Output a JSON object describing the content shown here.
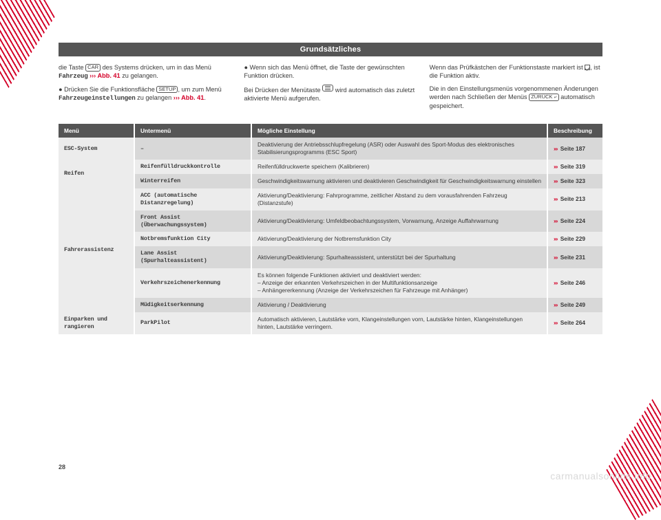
{
  "page": {
    "title": "Grundsätzliches",
    "page_number": "28",
    "watermark": "carmanualsonline.info"
  },
  "columns": {
    "col1_p1a": "die Taste ",
    "col1_key1": "CAR",
    "col1_p1b": " des Systems drücken, um in das Menü ",
    "col1_p1_mono": "Fahrzeug",
    "col1_p1_ref": " ››› Abb. 41",
    "col1_p1c": " zu gelangen.",
    "col1_p2a": "Drücken Sie die Funktionsfläche ",
    "col1_key2": "SETUP",
    "col1_p2b": ", um zum Menü ",
    "col1_p2_mono": "Fahrzeugeinstellungen",
    "col1_p2c": " zu gelangen ",
    "col1_p2_ref": "››› Abb. 41",
    "col1_p2d": ".",
    "col2_p1": "Wenn sich das Menü öffnet, die Taste der gewünschten Funktion drücken.",
    "col2_p2a": "Bei Drücken der Menütaste ",
    "col2_p2b": " wird automatisch das zuletzt aktivierte Menü aufgerufen.",
    "col3_p1a": "Wenn das Prüfkästchen der Funktionstaste markiert ist ",
    "col3_p1b": ", ist die Funktion aktiv.",
    "col3_p2a": "Die in den Einstellungsmenüs vorgenommenen Änderungen werden nach Schließen der Menüs ",
    "col3_key": "ZURÜCK ⤶",
    "col3_p2b": " automatisch gespeichert."
  },
  "table": {
    "headers": {
      "c1": "Menü",
      "c2": "Untermenü",
      "c3": "Mögliche Einstellung",
      "c4": "Beschreibung"
    },
    "rows": [
      {
        "shade": "dark",
        "menu": "ESC-System",
        "menu_rowspan": 1,
        "sub": "–",
        "desc": "Deaktivierung der Antriebsschlupfregelung (ASR) oder Auswahl des Sport-Modus des elektronisches Stabilisierungsprogramms (ESC Sport)",
        "ref": "››› Seite 187"
      },
      {
        "shade": "light",
        "menu": "Reifen",
        "menu_rowspan": 2,
        "sub": "Reifenfülldruckkontrolle",
        "desc": "Reifenfülldruckwerte speichern (Kalibrieren)",
        "ref": "››› Seite 319"
      },
      {
        "shade": "dark",
        "sub": "Winterreifen",
        "desc": "Geschwindigkeitswarnung aktivieren und deaktivieren Geschwindigkeit für Geschwindigkeitswarnung einstellen",
        "ref": "››› Seite 323"
      },
      {
        "shade": "light",
        "menu": "Fahrerassistenz",
        "menu_rowspan": 6,
        "sub": "ACC (automatische Distanzregelung)",
        "desc": "Aktivierung/Deaktivierung: Fahrprogramme, zeitlicher Abstand zu dem vorausfahrenden Fahrzeug (Distanzstufe)",
        "ref": "››› Seite 213"
      },
      {
        "shade": "dark",
        "sub": "Front Assist (Überwachungssystem)",
        "desc": "Aktivierung/Deaktivierung: Umfeldbeobachtungssystem, Vorwarnung, Anzeige Auffahrwarnung",
        "ref": "››› Seite 224"
      },
      {
        "shade": "light",
        "sub": "Notbremsfunktion City",
        "desc": "Aktivierung/Deaktivierung der Notbremsfunktion City",
        "ref": "››› Seite 229"
      },
      {
        "shade": "dark",
        "sub": "Lane Assist (Spurhalteassistent)",
        "desc": "Aktivierung/Deaktivierung: Spurhalteassistent, unterstützt bei der Spurhaltung",
        "ref": "››› Seite 231"
      },
      {
        "shade": "light",
        "sub": "Verkehrszeichenerkennung",
        "desc": "Es können folgende Funktionen aktiviert und deaktiviert werden:\n– Anzeige der erkannten Verkehrszeichen in der Multifunktionsanzeige\n– Anhängererkennung (Anzeige der Verkehrszeichen für Fahrzeuge mit Anhänger)",
        "ref": "››› Seite 246"
      },
      {
        "shade": "dark",
        "sub": "Müdigkeitserkennung",
        "desc": "Aktivierung / Deaktivierung",
        "ref": "››› Seite 249"
      },
      {
        "shade": "light",
        "menu": "Einparken und rangieren",
        "menu_rowspan": 1,
        "sub": "ParkPilot",
        "desc": "Automatisch aktivieren, Lautstärke vorn, Klangeinstellungen vorn, Lautstärke hinten, Klangeinstellungen hinten, Lautstärke verringern.",
        "ref": "››› Seite 264"
      }
    ]
  },
  "colors": {
    "accent_red": "#d40028",
    "header_bg": "#555555",
    "row_dark": "#d8d8d8",
    "row_light": "#ececec"
  }
}
